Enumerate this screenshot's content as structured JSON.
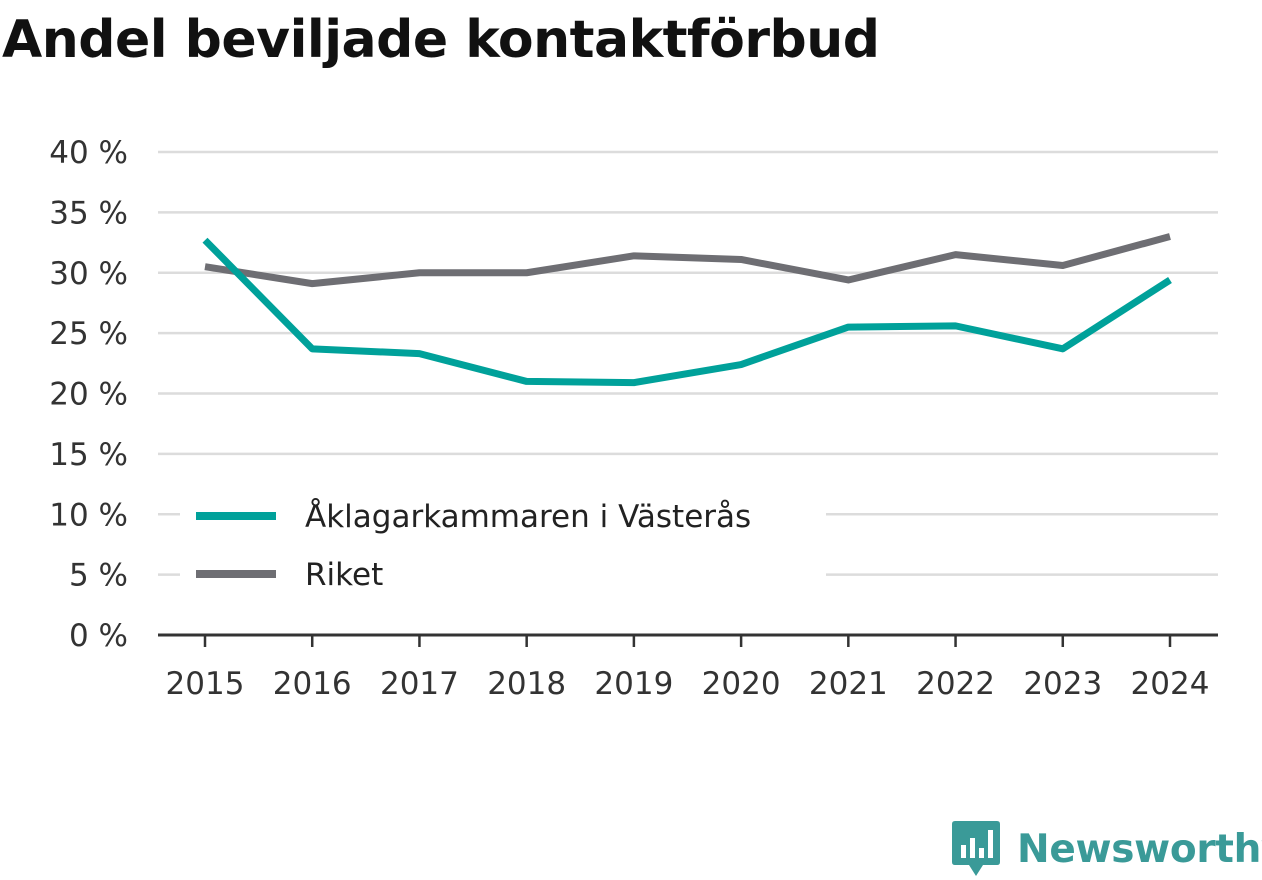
{
  "brand": {
    "name": "Newsworthy",
    "color": "#3a9a98",
    "icon": "newsworthy-logo-icon"
  },
  "chart_data": {
    "type": "line",
    "title": "Andel beviljade kontaktförbud",
    "x": [
      "2015",
      "2016",
      "2017",
      "2018",
      "2019",
      "2020",
      "2021",
      "2022",
      "2023",
      "2024"
    ],
    "series": [
      {
        "name": "Åklagarkammaren i Västerås",
        "color": "#00a19a",
        "values": [
          32.7,
          23.7,
          23.3,
          21.0,
          20.9,
          22.4,
          25.5,
          25.6,
          23.7,
          29.4
        ]
      },
      {
        "name": "Riket",
        "color": "#6e6e73",
        "values": [
          30.5,
          29.1,
          30.0,
          30.0,
          31.4,
          31.1,
          29.4,
          31.5,
          30.6,
          33.0
        ]
      }
    ],
    "ylim": [
      0,
      40
    ],
    "yticks": [
      0,
      5,
      10,
      15,
      20,
      25,
      30,
      35,
      40
    ],
    "ytick_labels": [
      "0 %",
      "5 %",
      "10 %",
      "15 %",
      "20 %",
      "25 %",
      "30 %",
      "35 %",
      "40 %"
    ],
    "xlabel": "",
    "ylabel": "",
    "grid": true,
    "legend_position": "bottom-left"
  }
}
